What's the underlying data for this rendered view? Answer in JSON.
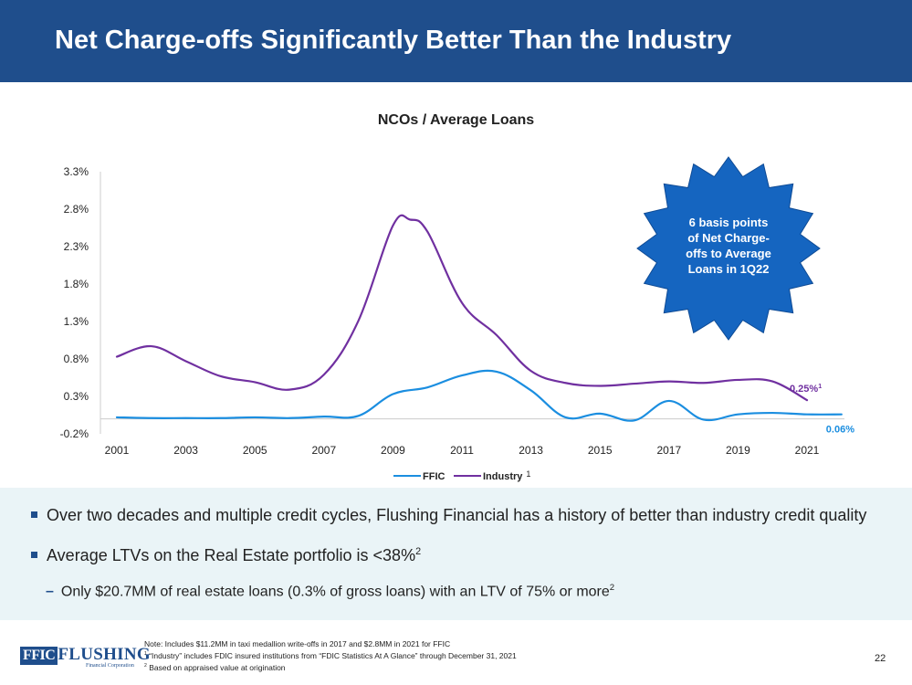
{
  "header": {
    "title": "Net Charge-offs Significantly Better Than the Industry"
  },
  "chart_data": {
    "type": "line",
    "title": "NCOs / Average Loans",
    "x": [
      2001,
      2002,
      2003,
      2004,
      2005,
      2006,
      2007,
      2008,
      2009,
      2010,
      2011,
      2012,
      2013,
      2014,
      2015,
      2016,
      2017,
      2018,
      2019,
      2020,
      2021,
      2022
    ],
    "x_ticks": [
      "2001",
      "2003",
      "2005",
      "2007",
      "2009",
      "2011",
      "2013",
      "2015",
      "2017",
      "2019",
      "2021"
    ],
    "y_ticks": [
      "-0.2%",
      "0.3%",
      "0.8%",
      "1.3%",
      "1.8%",
      "2.3%",
      "2.8%",
      "3.3%"
    ],
    "y_tick_values": [
      -0.2,
      0.3,
      0.8,
      1.3,
      1.8,
      2.3,
      2.8,
      3.3
    ],
    "ylim": [
      -0.2,
      3.3
    ],
    "series": [
      {
        "name": "FFIC",
        "color": "#1b8ee0",
        "x": [
          2001,
          2002,
          2003,
          2004,
          2005,
          2006,
          2007,
          2008,
          2009,
          2010,
          2011,
          2012,
          2013,
          2014,
          2015,
          2016,
          2017,
          2018,
          2019,
          2020,
          2021,
          2022
        ],
        "values": [
          0.02,
          0.01,
          0.01,
          0.01,
          0.02,
          0.01,
          0.03,
          0.04,
          0.33,
          0.42,
          0.58,
          0.63,
          0.38,
          0.02,
          0.07,
          -0.02,
          0.24,
          -0.01,
          0.06,
          0.08,
          0.06,
          0.06
        ]
      },
      {
        "name": "Industry",
        "color": "#7030a0",
        "x": [
          2001,
          2002,
          2003,
          2004,
          2005,
          2006,
          2007,
          2008,
          2009,
          2009.5,
          2010,
          2011,
          2012,
          2013,
          2014,
          2015,
          2016,
          2017,
          2018,
          2019,
          2020,
          2021
        ],
        "values": [
          0.83,
          0.97,
          0.77,
          0.57,
          0.49,
          0.39,
          0.59,
          1.31,
          2.58,
          2.66,
          2.5,
          1.55,
          1.12,
          0.64,
          0.48,
          0.44,
          0.47,
          0.5,
          0.48,
          0.52,
          0.5,
          0.25
        ]
      }
    ],
    "legend": {
      "position": "bottom",
      "items": [
        "FFIC",
        "Industry"
      ],
      "industry_superscript": "1"
    },
    "annotations": {
      "industry_end": "0.25%",
      "industry_end_superscript": "1",
      "ffic_end": "0.06%"
    },
    "callout": {
      "lines": [
        "6  basis points",
        "of Net Charge-",
        "offs to Average",
        "Loans in 1Q22"
      ],
      "color": "#1565c0"
    },
    "axis_color": "#cccccc"
  },
  "bullets": {
    "item1": "Over two decades and multiple credit cycles, Flushing Financial has a history of better than industry credit quality",
    "item2": "Average LTVs on the Real Estate portfolio is <38%",
    "item2_sup": "2",
    "item3": "Only $20.7MM of real estate loans (0.3% of gross loans) with an LTV of 75% or more",
    "item3_sup": "2"
  },
  "footer": {
    "logo_box": "FFIC",
    "logo_text": "FLUSHING",
    "logo_sub": "Financial Corporation",
    "note1": "Note: Includes $11.2MM in taxi medallion write-offs in 2017 and $2.8MM in 2021 for FFIC",
    "note2_sup": "1",
    "note2": " “Industry” includes FDIC insured institutions from “FDIC Statistics At A Glance” through December 31, 2021",
    "note3_sup": "2",
    "note3": " Based on appraised value at origination",
    "page_number": "22"
  },
  "colors": {
    "brand_blue": "#1f4e8c",
    "bullet_bg": "#eaf4f7"
  }
}
